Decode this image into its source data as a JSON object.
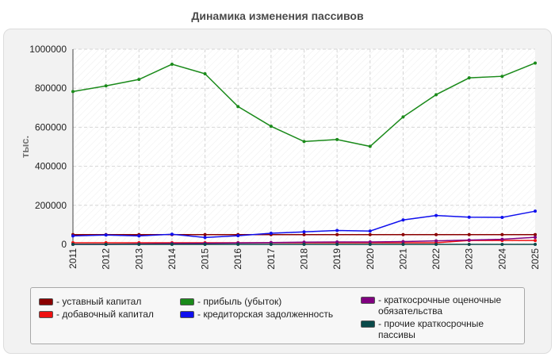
{
  "chart_data": {
    "type": "line",
    "title": "Динамика изменения пассивов",
    "ylabel": "тыс.",
    "xlabel": "",
    "ylim": [
      0,
      1000000
    ],
    "yticks": [
      "0",
      "200000",
      "400000",
      "600000",
      "800000",
      "1000000"
    ],
    "categories": [
      "2011",
      "2012",
      "2013",
      "2014",
      "2015",
      "2016",
      "2017",
      "2018",
      "2019",
      "2020",
      "2021",
      "2022",
      "2023",
      "2024",
      "2025"
    ],
    "grid": true,
    "legend_position": "bottom",
    "series": [
      {
        "name": "- уставный капитал",
        "color": "#8b0000",
        "values": [
          50000,
          50000,
          50000,
          50000,
          50000,
          50000,
          50000,
          50000,
          50000,
          50000,
          50000,
          50000,
          50000,
          50000,
          50000
        ]
      },
      {
        "name": "- добавочный капитал",
        "color": "#ee1111",
        "values": [
          8000,
          8000,
          8000,
          8000,
          8000,
          8000,
          8000,
          8000,
          8000,
          8000,
          8000,
          8000,
          20000,
          20000,
          20000
        ]
      },
      {
        "name": "- прибыль (убыток)",
        "color": "#1a8a1a",
        "values": [
          783000,
          812000,
          845000,
          923000,
          874000,
          706000,
          605000,
          527000,
          537000,
          502000,
          653000,
          767000,
          853000,
          861000,
          929000
        ]
      },
      {
        "name": "- кредиторская задолженность",
        "color": "#1010ee",
        "values": [
          43000,
          48000,
          43000,
          52000,
          35000,
          44000,
          57000,
          64000,
          71000,
          68000,
          125000,
          148000,
          139000,
          138000,
          170000
        ]
      },
      {
        "name": "- краткосрочные оценочные обязательства",
        "color": "#800080",
        "values": [
          0,
          0,
          2000,
          4000,
          5000,
          7000,
          9000,
          11000,
          12000,
          12000,
          14000,
          18000,
          22000,
          26000,
          36000
        ]
      },
      {
        "name": "- прочие краткосрочные пассивы",
        "color": "#0a4a4a",
        "values": [
          0,
          0,
          0,
          0,
          0,
          0,
          0,
          0,
          0,
          0,
          0,
          0,
          0,
          0,
          0
        ]
      }
    ]
  }
}
